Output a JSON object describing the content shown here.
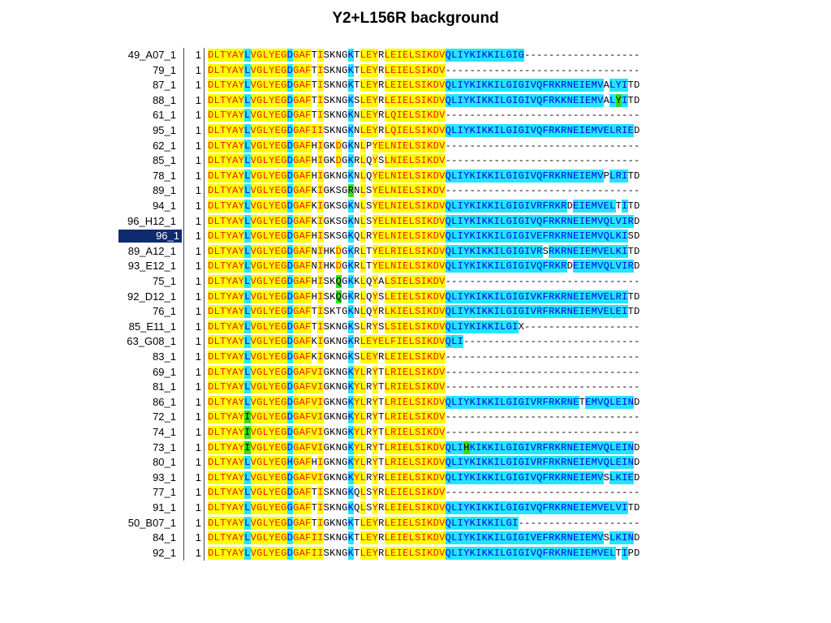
{
  "title": "Y2+L156R background",
  "alignment": {
    "selected_row": "96_1",
    "rows": [
      {
        "name": "49_A07_1",
        "start": "1",
        "seq": "DLTYAYLVGLYEGDGAFTISKNGKTLEYRLEIELSIKDVQLIYKIKKILGIG-------------------",
        "greens": []
      },
      {
        "name": "79_1",
        "start": "1",
        "seq": "DLTYAYLVGLYEGDGAFTISKNGKTLEYRLEIELSIKDV--------------------------------",
        "greens": []
      },
      {
        "name": "87_1",
        "start": "1",
        "seq": "DLTYAYLVGLYEGDGAFTISKNGKTLEYRLEIELSIKDVQLIYKIKKILGIGIVQFRKRNEIEMVALYITD",
        "greens": []
      },
      {
        "name": "88_1",
        "start": "1",
        "seq": "DLTYAYLVGLYEGDGAFTISKNGKSLEYRLEIELSIKDVQLIYKIKKILGIGIVQFRKKNEIEMVALYITD",
        "greens": [
          67
        ]
      },
      {
        "name": "61_1",
        "start": "1",
        "seq": "DLTYAYLVGLYEGDGAFTISKNGKNLEYRLQIELSIKDV--------------------------------",
        "greens": []
      },
      {
        "name": "95_1",
        "start": "1",
        "seq": "DLTYAYLVGLYEGDGAFIISKNGKNLEYRLQIELSIKDVQLIYKIKKILGIGIVQFRKRNEIEMVELRIED",
        "greens": []
      },
      {
        "name": "62_1",
        "start": "1",
        "seq": "DLTYAYLVGLYEGDGAFHIGKDGKNLPYELNIELSIKDV--------------------------------",
        "greens": []
      },
      {
        "name": "85_1",
        "start": "1",
        "seq": "DLTYAYLVGLYEGDGAFHIGKDGKRLQYSLNIELSIKDV--------------------------------",
        "greens": []
      },
      {
        "name": "78_1",
        "start": "1",
        "seq": "DLTYAYLVGLYEGDGAFHIGKNGKNLQYELNIELSIKDVQLIYKIKKILGIGIVQFRKRNEIEMVPLRITD",
        "greens": []
      },
      {
        "name": "89_1",
        "start": "1",
        "seq": "DLTYAYLVGLYEGDGAFKIGKSGRNLSYELNIELSIKDV--------------------------------",
        "greens": [
          23
        ]
      },
      {
        "name": "94_1",
        "start": "1",
        "seq": "DLTYAYLVGLYEGDGAFKIGKSGKNLSYELNIELSIKDVQLIYKIKKILGIGIVRFRKRDEIEMVELTITD",
        "greens": []
      },
      {
        "name": "96_H12_1",
        "start": "1",
        "seq": "DLTYAYLVGLYEGDGAFKIGKSGKNLSYELNIELSIKDVQLIYKIKKILGIGIVQFRKRNEIEMVQLVIRD",
        "greens": []
      },
      {
        "name": "96_1",
        "start": "1",
        "seq": "DLTYAYLVGLYEGDGAFHISKSGKQLRYELNIELSIKDVQLIYKIKKILGIGIVEFRKRNEIEMVQLKISD",
        "greens": []
      },
      {
        "name": "89_A12_1",
        "start": "1",
        "seq": "DLTYAYLVGLYEGDGAFNIHKDGKRLTYELRIELSIKDVQLIYKIKKILGIGIVRSRKRNEIEMVELKITD",
        "greens": []
      },
      {
        "name": "93_E12_1",
        "start": "1",
        "seq": "DLTYAYLVGLYEGDGAFNIHKDGKRLTYELNIELSIKDVQLIYKIKKILGIGIVQFRKRDEIEMVQLVIRD",
        "greens": []
      },
      {
        "name": "75_1",
        "start": "1",
        "seq": "DLTYAYLVGLYEGDGAFHISKQGKKLQYALSIELSIKDV--------------------------------",
        "greens": [
          21
        ]
      },
      {
        "name": "92_D12_1",
        "start": "1",
        "seq": "DLTYAYLVGLYEGDGAFHISKQGKRLQYSLEIELSIKDVQLIYKIKKILGIGIVKFRKRNEIEMVELRITD",
        "greens": [
          21
        ]
      },
      {
        "name": "76_1",
        "start": "1",
        "seq": "DLTYAYLVGLYEGDGAFTISKTGKNLQYRLKIELSIKDVQLIYKIKKILGIGIVRFRKRNEIEMVELEITD",
        "greens": []
      },
      {
        "name": "85_E11_1",
        "start": "1",
        "seq": "DLTYAYLVGLYEGDGAFTISKNGKSLRYSLSIELSIKDVQLIYKIKKILGIX-------------------",
        "greens": []
      },
      {
        "name": "63_G08_1",
        "start": "1",
        "seq": "DLTYAYLVGLYEGDGAFKIGKNGKRLEYELFIELSIKDVQLI-----------------------------",
        "greens": []
      },
      {
        "name": "83_1",
        "start": "1",
        "seq": "DLTYAYLVGLYEGDGAFKIGKNGKSLEYRLEIELSIKDV--------------------------------",
        "greens": []
      },
      {
        "name": "69_1",
        "start": "1",
        "seq": "DLTYAYLVGLYEGDGAFVIGKNGKYLRYTLRIELSIKDV--------------------------------",
        "greens": []
      },
      {
        "name": "81_1",
        "start": "1",
        "seq": "DLTYAYLVGLYEGDGAFVIGKNGKYLRYTLRIELSIKDV--------------------------------",
        "greens": []
      },
      {
        "name": "86_1",
        "start": "1",
        "seq": "DLTYAYLVGLYEGDGAFVIGKNGKYLRYTLRIELSIKDVQLIYKIKKILGIGIVRFRKRNETEMVQLEIND",
        "greens": []
      },
      {
        "name": "72_1",
        "start": "1",
        "seq": "DLTYAYIVGLYEGDGAFVIGKNGKYLRYTLRIELSIKDV--------------------------------",
        "greens": [
          6
        ]
      },
      {
        "name": "74_1",
        "start": "1",
        "seq": "DLTYAYIVGLYEGDGAFVIGKNGKYLRYTLRIELSIKDV--------------------------------",
        "greens": [
          6
        ]
      },
      {
        "name": "73_1",
        "start": "1",
        "seq": "DLTYAYIVGLYEGDGAFVIGKNGKYLRYTLRIELSIKDVQLIHKIKKILGIGIVRFRKRNEIEMVQLEIND",
        "greens": [
          6,
          42
        ]
      },
      {
        "name": "80_1",
        "start": "1",
        "seq": "DLTYAYLVGLYEGHGAFHIGKNGKYLRYTLRIELSIKDVQLIYKIKKILGIGIVRFRKRNEIEMVQLEIND",
        "greens": []
      },
      {
        "name": "93_1",
        "start": "1",
        "seq": "DLTYAYLVGLYEGDGAFVIGKNGKYLRYRLEIELSIKDVQLIYKIKKILGIGIVQFRKRNEIEMVSLKIED",
        "greens": []
      },
      {
        "name": "77_1",
        "start": "1",
        "seq": "DLTYAYLVGLYEGDGAFTISKNGKQLSYRLEIELSIKDV--------------------------------",
        "greens": []
      },
      {
        "name": "91_1",
        "start": "1",
        "seq": "DLTYAYLVGLYEGGGAFTISKNGKQLSYRLEIELSIKDVQLIYKIKKILGIGIVQFRKRNEIEMVELVITD",
        "greens": []
      },
      {
        "name": "50_B07_1",
        "start": "1",
        "seq": "DLTYAYLVGLYEGDGAFTIGKNGKTLEYRLEIELSIKDVQLIYKIKKILGI--------------------",
        "greens": []
      },
      {
        "name": "84_1",
        "start": "1",
        "seq": "DLTYAYLVGLYEGDGAFIISKNGKTLEYRLEIELSIKDVQLIYKIKKILGIGIVEFRKRNEIEMVSLKIND",
        "greens": []
      },
      {
        "name": "92_1",
        "start": "1",
        "seq": "DLTYAYLVGLYEGDGAFIISKNGKTLEYRLEIELSIKDVQLIYKIKKILGIGIVQFRKRNEIEMVELTIPD",
        "greens": []
      }
    ]
  },
  "colors": {
    "yellow_highlight": "#ffff00",
    "cyan_highlight": "#22e5ff",
    "green_highlight": "#33dd22",
    "red_text": "#ee1111",
    "blue_text": "#0000dd",
    "selection": "#0f2a6e"
  }
}
